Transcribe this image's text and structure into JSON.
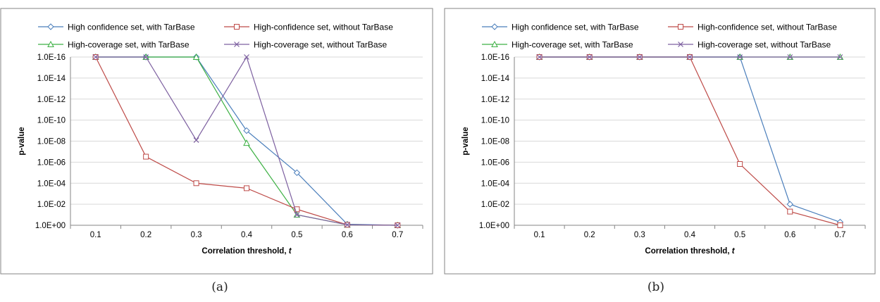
{
  "chart_data": [
    {
      "type": "line",
      "title": "",
      "xlabel": "Correlation threshold,",
      "xlabel_var": "t",
      "ylabel": "p-value",
      "x": [
        0.1,
        0.2,
        0.3,
        0.4,
        0.5,
        0.6,
        0.7
      ],
      "x_tick_labels": [
        "0.1",
        "0.2",
        "0.3",
        "0.4",
        "0.5",
        "0.6",
        "0.7"
      ],
      "y_scale": "log",
      "y_reversed": true,
      "ylim": [
        1,
        1e-16
      ],
      "y_tick_values": [
        1,
        0.01,
        0.0001,
        1e-06,
        1e-08,
        1e-10,
        1e-12,
        1e-14,
        1e-16
      ],
      "y_tick_labels": [
        "1.0E+00",
        "1.0E-02",
        "1.0E-04",
        "1.0E-06",
        "1.0E-08",
        "1.0E-10",
        "1.0E-12",
        "1.0E-14",
        "1.0E-16"
      ],
      "grid": true,
      "legend_position": "top",
      "caption": "(a)",
      "series": [
        {
          "name": "High confidence set, with TarBase",
          "color": "#4a7ebb",
          "marker": "diamond",
          "values": [
            1e-16,
            1e-16,
            1e-16,
            1e-09,
            1e-05,
            0.8,
            1
          ]
        },
        {
          "name": "High-confidence set, without TarBase",
          "color": "#be4b48",
          "marker": "square",
          "values": [
            1e-16,
            3e-07,
            0.0001,
            0.0003,
            0.03,
            0.9,
            1
          ]
        },
        {
          "name": "High-coverage set, with TarBase",
          "color": "#3cb043",
          "marker": "triangle",
          "values": [
            1e-16,
            1e-16,
            1e-16,
            1.5e-08,
            0.1,
            0.9,
            1
          ]
        },
        {
          "name": "High-coverage set, without TarBase",
          "color": "#7d60a0",
          "marker": "x",
          "values": [
            1e-16,
            1e-16,
            8e-09,
            1e-16,
            0.1,
            0.9,
            1
          ]
        }
      ]
    },
    {
      "type": "line",
      "title": "",
      "xlabel": "Correlation threshold,",
      "xlabel_var": "t",
      "ylabel": "p-value",
      "x": [
        0.1,
        0.2,
        0.3,
        0.4,
        0.5,
        0.6,
        0.7
      ],
      "x_tick_labels": [
        "0.1",
        "0.2",
        "0.3",
        "0.4",
        "0.5",
        "0.6",
        "0.7"
      ],
      "y_scale": "log",
      "y_reversed": true,
      "ylim": [
        1,
        1e-16
      ],
      "y_tick_values": [
        1,
        0.01,
        0.0001,
        1e-06,
        1e-08,
        1e-10,
        1e-12,
        1e-14,
        1e-16
      ],
      "y_tick_labels": [
        "1.0E+00",
        "1.0E-02",
        "1.0E-04",
        "1.0E-06",
        "1.0E-08",
        "1.0E-10",
        "1.0E-12",
        "1.0E-14",
        "1.0E-16"
      ],
      "grid": true,
      "legend_position": "top",
      "caption": "(b)",
      "series": [
        {
          "name": "High confidence set, with TarBase",
          "color": "#4a7ebb",
          "marker": "diamond",
          "values": [
            1e-16,
            1e-16,
            1e-16,
            1e-16,
            1e-16,
            0.01,
            0.5
          ]
        },
        {
          "name": "High-confidence set, without TarBase",
          "color": "#be4b48",
          "marker": "square",
          "values": [
            1e-16,
            1e-16,
            1e-16,
            1e-16,
            1.5e-06,
            0.05,
            1
          ]
        },
        {
          "name": "High-coverage set, with TarBase",
          "color": "#3cb043",
          "marker": "triangle",
          "values": [
            1e-16,
            1e-16,
            1e-16,
            1e-16,
            1e-16,
            1e-16,
            1e-16
          ]
        },
        {
          "name": "High-coverage set, without TarBase",
          "color": "#7d60a0",
          "marker": "x",
          "values": [
            1e-16,
            1e-16,
            1e-16,
            1e-16,
            1e-16,
            1e-16,
            1e-16
          ]
        }
      ]
    }
  ]
}
